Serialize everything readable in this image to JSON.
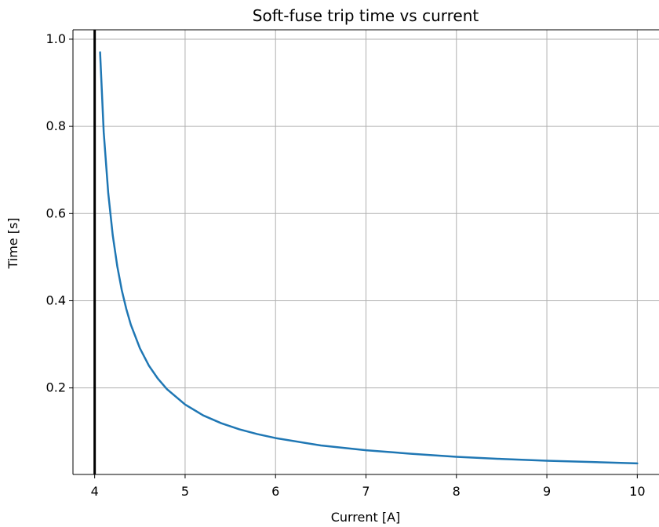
{
  "chart_data": {
    "type": "line",
    "title": "Soft-fuse trip time vs current",
    "xlabel": "Current [A]",
    "ylabel": "Time [s]",
    "xlim": [
      3.76,
      10.24
    ],
    "ylim": [
      0.0015,
      1.0215
    ],
    "grid": true,
    "x_ticks": [
      4,
      5,
      6,
      7,
      8,
      9,
      10
    ],
    "y_ticks": [
      0.2,
      0.4,
      0.6,
      0.8,
      1.0
    ],
    "x_tick_labels": [
      "4",
      "5",
      "6",
      "7",
      "8",
      "9",
      "10"
    ],
    "y_tick_labels": [
      "0.2",
      "0.4",
      "0.6",
      "0.8",
      "1.0"
    ],
    "vertical_line": {
      "x": 4,
      "color": "#000000"
    },
    "series": [
      {
        "color": "#1f77b4",
        "x": [
          4.06,
          4.1,
          4.15,
          4.2,
          4.25,
          4.3,
          4.35,
          4.4,
          4.5,
          4.6,
          4.7,
          4.8,
          5.0,
          5.2,
          5.4,
          5.6,
          5.8,
          6.0,
          6.5,
          7.0,
          7.5,
          8.0,
          8.5,
          9.0,
          9.5,
          10.0
        ],
        "y": [
          0.97,
          0.787,
          0.647,
          0.55,
          0.479,
          0.424,
          0.381,
          0.345,
          0.291,
          0.251,
          0.221,
          0.197,
          0.162,
          0.137,
          0.119,
          0.105,
          0.094,
          0.085,
          0.068,
          0.057,
          0.049,
          0.042,
          0.037,
          0.033,
          0.03,
          0.027
        ]
      }
    ]
  }
}
